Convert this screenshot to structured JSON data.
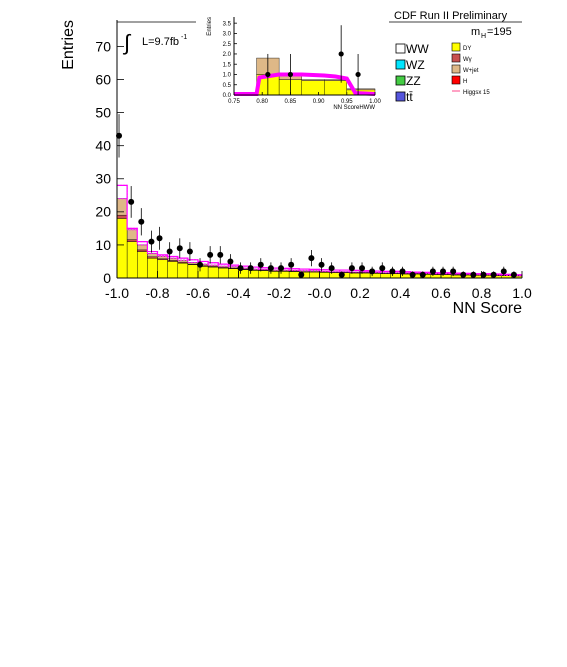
{
  "chart_data": [
    {
      "type": "histogram",
      "title": "CDF Run II Preliminary",
      "xlabel": "NN Score",
      "ylabel": "Entries",
      "xlim": [
        -1.0,
        1.0
      ],
      "ylim": [
        0,
        78
      ],
      "x_ticks": [
        "-1.0",
        "-0.8",
        "-0.6",
        "-0.4",
        "-0.2",
        "-0.0",
        "0.2",
        "0.4",
        "0.6",
        "0.8",
        "1.0"
      ],
      "y_ticks": [
        "0",
        "10",
        "20",
        "30",
        "40",
        "50",
        "60",
        "70"
      ],
      "luminosity_label": "L=9.7fb",
      "luminosity_superscript": "-1",
      "mass_label_main": "m",
      "mass_label_sub": "H",
      "mass_label_value": "=195",
      "bin_edges": [
        -1.0,
        -0.95,
        -0.9,
        -0.85,
        -0.8,
        -0.75,
        -0.7,
        -0.65,
        -0.6,
        -0.55,
        -0.5,
        -0.45,
        -0.4,
        -0.35,
        -0.3,
        -0.25,
        -0.2,
        -0.15,
        -0.1,
        -0.05,
        0.0,
        0.05,
        0.1,
        0.15,
        0.2,
        0.25,
        0.3,
        0.35,
        0.4,
        0.45,
        0.5,
        0.55,
        0.6,
        0.65,
        0.7,
        0.75,
        0.8,
        0.85,
        0.9,
        0.95,
        1.0
      ],
      "background_stack": [
        {
          "name": "DY",
          "color": "#ffff00",
          "values": [
            18,
            11,
            8,
            6,
            5.5,
            5,
            4.5,
            4,
            3.5,
            3.3,
            3,
            2.8,
            2.5,
            2.3,
            2.2,
            2,
            2,
            1.9,
            1.8,
            1.8,
            1.7,
            1.6,
            1.6,
            1.5,
            1.5,
            1.4,
            1.3,
            1.3,
            1.2,
            1.2,
            1.1,
            1,
            1,
            0.9,
            0.9,
            0.8,
            0.8,
            0.7,
            0.7,
            0.6
          ]
        },
        {
          "name": "Wγ",
          "color": "#c8504f",
          "values": [
            1,
            0.6,
            0.5,
            0.4,
            0.3,
            0.3,
            0.3,
            0.2,
            0.2,
            0.2,
            0.2,
            0.2,
            0.2,
            0.1,
            0.1,
            0.1,
            0.1,
            0.1,
            0.1,
            0.1,
            0.1,
            0.1,
            0.1,
            0.1,
            0.1,
            0.1,
            0.1,
            0.1,
            0.1,
            0.1,
            0.1,
            0.1,
            0.1,
            0.1,
            0.1,
            0.1,
            0.1,
            0.1,
            0.1,
            0.1
          ]
        },
        {
          "name": "W+jet",
          "color": "#deb887",
          "values": [
            5,
            3,
            1.5,
            1,
            0.8,
            0.7,
            0.6,
            0.5,
            0.5,
            0.4,
            0.4,
            0.4,
            0.3,
            0.3,
            0.3,
            0.3,
            0.3,
            0.3,
            0.3,
            0.3,
            0.2,
            0.2,
            0.2,
            0.2,
            0.2,
            0.2,
            0.2,
            0.2,
            0.2,
            0.2,
            0.2,
            0.2,
            0.2,
            0.2,
            0.2,
            0.2,
            0.2,
            0.2,
            0.2,
            0.2
          ]
        }
      ],
      "signal_band": {
        "name": "Higgsx 15",
        "color": "#ff00ff",
        "values": [
          28,
          15,
          11,
          8,
          7,
          6.5,
          6,
          5.5,
          5,
          4.6,
          4.2,
          3.9,
          3.6,
          3.3,
          3.1,
          3,
          2.9,
          2.8,
          2.7,
          2.6,
          2.5,
          2.4,
          2.4,
          2.3,
          2.2,
          2.1,
          2,
          2,
          1.9,
          1.8,
          1.7,
          1.6,
          1.6,
          1.5,
          1.4,
          1.3,
          1.3,
          1.2,
          1.1,
          1
        ]
      },
      "data_points": {
        "x": [
          -0.99,
          -0.93,
          -0.88,
          -0.83,
          -0.79,
          -0.74,
          -0.69,
          -0.64,
          -0.59,
          -0.54,
          -0.49,
          -0.44,
          -0.39,
          -0.34,
          -0.29,
          -0.24,
          -0.19,
          -0.14,
          -0.09,
          -0.04,
          0.01,
          0.06,
          0.11,
          0.16,
          0.21,
          0.26,
          0.31,
          0.36,
          0.41,
          0.46,
          0.51,
          0.56,
          0.61,
          0.66,
          0.71,
          0.76,
          0.81,
          0.86,
          0.91,
          0.96
        ],
        "y": [
          43,
          23,
          17,
          11,
          12,
          8,
          9,
          8,
          4,
          7,
          7,
          5,
          3,
          3,
          4,
          3,
          3,
          4,
          1,
          6,
          4,
          3,
          1,
          3,
          3,
          2,
          3,
          2,
          2,
          1,
          1,
          2,
          2,
          2,
          1,
          1,
          1,
          1,
          2,
          1
        ]
      }
    },
    {
      "type": "histogram",
      "xlabel": "NN ScoreHWW",
      "ylabel": "Entries",
      "xlim": [
        0.75,
        1.0
      ],
      "ylim": [
        0,
        3.8
      ],
      "x_ticks": [
        "0.75",
        "0.80",
        "0.85",
        "0.90",
        "0.95",
        "1.00"
      ],
      "y_ticks": [
        "0.0",
        "0.5",
        "1.0",
        "1.5",
        "2.0",
        "2.5",
        "3.0",
        "3.5"
      ],
      "bin_edges": [
        0.75,
        0.79,
        0.83,
        0.87,
        0.91,
        0.95,
        1.0
      ],
      "background_stack": [
        {
          "name": "DY",
          "color": "#ffff00",
          "values": [
            0,
            1.0,
            0.75,
            0.7,
            0.7,
            0.25
          ]
        },
        {
          "name": "W+jet",
          "color": "#deb887",
          "values": [
            0,
            0.8,
            0.25,
            0.05,
            0.05,
            0.05
          ]
        }
      ],
      "signal_curve": {
        "x": [
          0.75,
          0.79,
          0.795,
          0.83,
          0.87,
          0.91,
          0.93,
          0.95,
          0.965,
          1.0
        ],
        "y": [
          0.05,
          0.05,
          0.85,
          1.0,
          1.0,
          0.95,
          0.9,
          0.8,
          0.1,
          0.05
        ]
      },
      "data_points": {
        "x": [
          0.81,
          0.85,
          0.94,
          0.97
        ],
        "y": [
          1.0,
          1.0,
          2.0,
          1.0
        ],
        "yerr": [
          1.0,
          1.0,
          1.4,
          1.0
        ]
      }
    }
  ],
  "legend": {
    "left": [
      {
        "label": "WW",
        "color": "#ffffff"
      },
      {
        "label": "WZ",
        "color": "#00e5ff"
      },
      {
        "label": "ZZ",
        "color": "#44cc44"
      },
      {
        "label": "tt̄",
        "color": "#5555dd"
      }
    ],
    "right": [
      {
        "label": "DY",
        "color": "#ffff00",
        "kind": "box"
      },
      {
        "label": "Wγ",
        "color": "#c8504f",
        "kind": "box"
      },
      {
        "label": "W+jet",
        "color": "#deb887",
        "kind": "box"
      },
      {
        "label": "H",
        "color": "#ff0000",
        "kind": "box"
      },
      {
        "label": "Higgsx 15",
        "color": "#ff4488",
        "kind": "line"
      }
    ]
  }
}
